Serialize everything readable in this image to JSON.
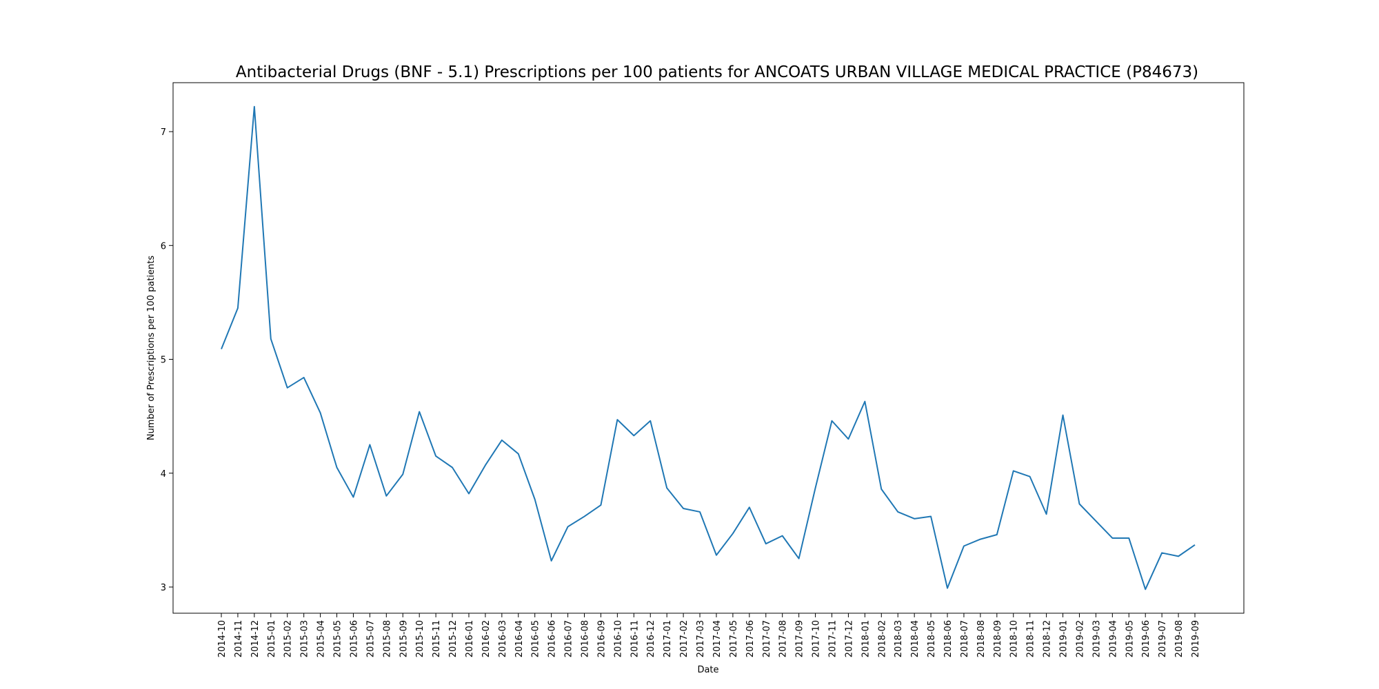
{
  "chart_data": {
    "type": "line",
    "title": "Antibacterial Drugs (BNF - 5.1) Prescriptions per 100 patients for ANCOATS URBAN VILLAGE MEDICAL PRACTICE (P84673)",
    "xlabel": "Date",
    "ylabel": "Number of Prescriptions per 100 patients",
    "ylim": [
      2.77,
      7.43
    ],
    "yticks": [
      3,
      4,
      5,
      6,
      7
    ],
    "grid": false,
    "color": "#1f77b4",
    "x": [
      "2014-10",
      "2014-11",
      "2014-12",
      "2015-01",
      "2015-02",
      "2015-03",
      "2015-04",
      "2015-05",
      "2015-06",
      "2015-07",
      "2015-08",
      "2015-09",
      "2015-10",
      "2015-11",
      "2015-12",
      "2016-01",
      "2016-02",
      "2016-03",
      "2016-04",
      "2016-05",
      "2016-06",
      "2016-07",
      "2016-08",
      "2016-09",
      "2016-10",
      "2016-11",
      "2016-12",
      "2017-01",
      "2017-02",
      "2017-03",
      "2017-04",
      "2017-05",
      "2017-06",
      "2017-07",
      "2017-08",
      "2017-09",
      "2017-10",
      "2017-11",
      "2017-12",
      "2018-01",
      "2018-02",
      "2018-03",
      "2018-04",
      "2018-05",
      "2018-06",
      "2018-07",
      "2018-08",
      "2018-09",
      "2018-10",
      "2018-11",
      "2018-12",
      "2019-01",
      "2019-02",
      "2019-03",
      "2019-04",
      "2019-05",
      "2019-06",
      "2019-07",
      "2019-08",
      "2019-09"
    ],
    "series": [
      {
        "values": [
          5.09,
          5.45,
          7.22,
          5.18,
          4.75,
          4.84,
          4.53,
          4.05,
          3.79,
          4.25,
          3.8,
          3.99,
          4.54,
          4.15,
          4.05,
          3.82,
          4.07,
          4.29,
          4.17,
          3.77,
          3.23,
          3.53,
          3.62,
          3.72,
          4.47,
          4.33,
          4.46,
          3.87,
          3.69,
          3.66,
          3.28,
          3.47,
          3.7,
          3.38,
          3.45,
          3.25,
          3.87,
          4.46,
          4.3,
          4.63,
          3.86,
          3.66,
          3.6,
          3.62,
          2.99,
          3.36,
          3.42,
          3.46,
          4.02,
          3.97,
          3.64,
          4.51,
          3.73,
          3.58,
          3.43,
          3.43,
          2.98,
          3.3,
          3.27,
          3.37
        ]
      }
    ]
  }
}
